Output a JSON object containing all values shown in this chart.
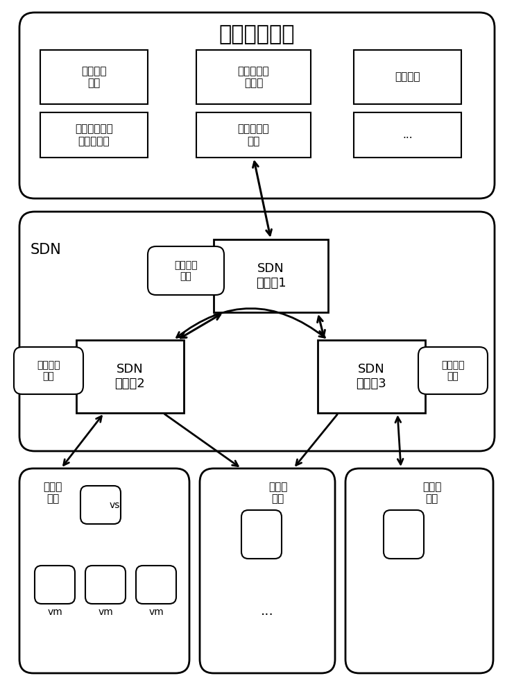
{
  "title": "云管理服务器",
  "sdn_label": "SDN",
  "comp1_label": "虚拟计算\n组件",
  "comp2_label": "虚拟机镜像文\n件管理组件",
  "comp3_label": "图形用户界\n面组件",
  "comp4_label": "网络虚拟化\n组件",
  "comp5_label": "鉴权组件",
  "comp6_label": "...",
  "ctrl1_label": "SDN\n控制刨1",
  "ctrl2_label": "SDN\n控制刨2",
  "ctrl3_label": "SDN\n控制刨3",
  "vnet1_label": "虚拟网络\n应用",
  "vnet2_label": "虚拟网络\n应用",
  "vnet3_label": "虚拟网络\n应用",
  "ps1_label": "物理服\n务器",
  "ps2_label": "物理服\n务器",
  "ps3_label": "物理服\n务器",
  "vs_label": "vs",
  "vm_label": "vm",
  "dots": "..."
}
